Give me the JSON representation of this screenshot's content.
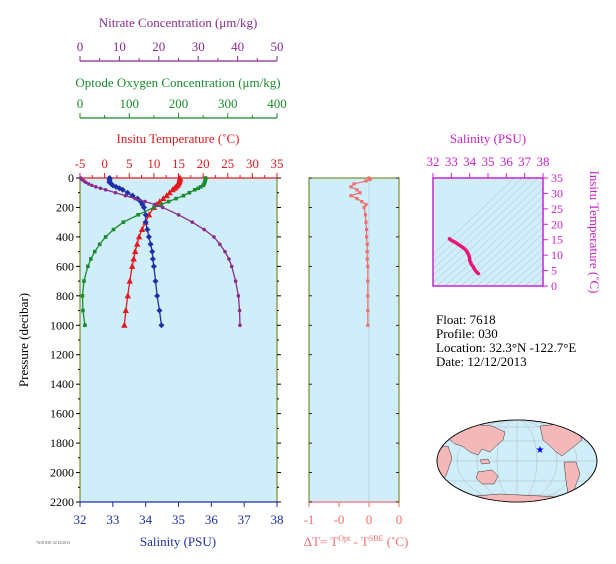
{
  "colors": {
    "nitrate": "#8b2c8b",
    "oxygen": "#1a8c2e",
    "temperature": "#e31a1c",
    "salinity": "#1f2fa8",
    "delta_t": "#f07070",
    "ts_axis": "#cc22cc",
    "ts_line": "#e8157a",
    "panel_bg": "#cfeefa",
    "panel_frame": "#667700"
  },
  "labels": {
    "nitrate_title": "Nitrate Concentration (μm/kg)",
    "oxygen_title": "Optode Oxygen Concentration (μm/kg)",
    "temperature_title": "Insitu Temperature (˚C)",
    "salinity_xlabel": "Salinity (PSU)",
    "pressure_ylabel": "Pressure (decibar)",
    "delta_t_xlabel_prefix": "ΔT= T",
    "delta_t_sup1": "Opt",
    "delta_t_mid": " - T",
    "delta_t_sup2": "SBE",
    "delta_t_suffix": " (˚C)",
    "ts_title": "Salinity (PSU)",
    "ts_ylabel": "Insitu Temperature (˚C)"
  },
  "info": {
    "float_line": "Float:  7618",
    "profile_line": "Profile:  030",
    "location_line": "Location:  32.3°N  -122.7°E",
    "date_line": "Date:  12/12/2013"
  },
  "footnote": "7618 030 12/12/2013",
  "chart_data": [
    {
      "type": "line",
      "name": "main-profile-panel",
      "y_axis": {
        "label": "Pressure (decibar)",
        "range": [
          2200,
          0
        ],
        "ticks": [
          0,
          200,
          400,
          600,
          800,
          1000,
          1200,
          1400,
          1600,
          1800,
          2000,
          2200
        ]
      },
      "x_axes": [
        {
          "label": "Salinity (PSU)",
          "range": [
            32,
            38
          ],
          "ticks": [
            32,
            33,
            34,
            35,
            36,
            37,
            38
          ],
          "position": "bottom"
        },
        {
          "label": "Insitu Temperature (˚C)",
          "range": [
            -5,
            35
          ],
          "ticks": [
            -5,
            0,
            5,
            10,
            15,
            20,
            25,
            30,
            35
          ],
          "position": "top"
        },
        {
          "label": "Optode Oxygen Concentration (μm/kg)",
          "range": [
            0,
            400
          ],
          "ticks": [
            0,
            100,
            200,
            300,
            400
          ],
          "position": "top"
        },
        {
          "label": "Nitrate Concentration (μm/kg)",
          "range": [
            0,
            50
          ],
          "ticks": [
            0,
            10,
            20,
            30,
            40,
            50
          ],
          "position": "top"
        }
      ],
      "series": [
        {
          "key": "temperature",
          "axis": "Insitu Temperature (˚C)",
          "marker": "triangle",
          "pressure": [
            0,
            10,
            20,
            30,
            40,
            50,
            60,
            70,
            80,
            100,
            120,
            140,
            160,
            180,
            200,
            250,
            300,
            350,
            400,
            450,
            500,
            550,
            600,
            700,
            800,
            900,
            1000
          ],
          "values": [
            15.3,
            15.3,
            15.2,
            15.1,
            15.0,
            14.8,
            14.5,
            14.2,
            13.8,
            13.2,
            12.6,
            11.9,
            11.2,
            10.6,
            10.0,
            9.0,
            8.3,
            7.6,
            7.0,
            6.6,
            6.2,
            5.9,
            5.6,
            5.1,
            4.7,
            4.3,
            4.0
          ]
        },
        {
          "key": "salinity",
          "axis": "Salinity (PSU)",
          "marker": "diamond",
          "pressure": [
            0,
            10,
            20,
            30,
            40,
            50,
            60,
            70,
            80,
            100,
            120,
            140,
            160,
            180,
            200,
            250,
            300,
            350,
            400,
            450,
            500,
            550,
            600,
            700,
            800,
            900,
            1000
          ],
          "values": [
            32.9,
            32.9,
            32.9,
            32.9,
            32.95,
            33.0,
            33.1,
            33.2,
            33.3,
            33.45,
            33.6,
            33.75,
            33.85,
            33.9,
            33.95,
            34.0,
            34.0,
            34.05,
            34.1,
            34.15,
            34.2,
            34.22,
            34.25,
            34.3,
            34.35,
            34.42,
            34.48
          ]
        },
        {
          "key": "oxygen",
          "axis": "Optode Oxygen Concentration (μm/kg)",
          "marker": "square",
          "pressure": [
            0,
            10,
            20,
            30,
            40,
            50,
            60,
            70,
            80,
            100,
            120,
            140,
            160,
            180,
            200,
            250,
            300,
            350,
            400,
            450,
            500,
            550,
            600,
            700,
            800,
            900,
            1000
          ],
          "values": [
            255,
            255,
            254,
            253,
            252,
            250,
            245,
            240,
            233,
            222,
            210,
            195,
            180,
            165,
            150,
            118,
            88,
            68,
            52,
            40,
            30,
            22,
            16,
            8,
            5,
            6,
            10
          ]
        },
        {
          "key": "nitrate",
          "axis": "Nitrate Concentration (μm/kg)",
          "marker": "circle",
          "pressure": [
            0,
            10,
            20,
            30,
            40,
            50,
            60,
            70,
            80,
            100,
            120,
            140,
            160,
            180,
            200,
            250,
            300,
            350,
            400,
            450,
            500,
            550,
            600,
            700,
            800,
            900,
            1000
          ],
          "values": [
            0.2,
            0.5,
            1.0,
            1.5,
            2.2,
            3.0,
            4.0,
            5.2,
            6.5,
            9.0,
            11.5,
            14.0,
            16.5,
            19.0,
            21.0,
            25.0,
            28.5,
            31.5,
            34.0,
            35.5,
            36.8,
            37.8,
            38.5,
            39.5,
            40.2,
            40.5,
            40.6
          ]
        }
      ]
    },
    {
      "type": "line",
      "name": "delta-t-panel",
      "xlabel": "ΔT= TOpt - TSBE (˚C)",
      "x_range": [
        -1,
        0.5
      ],
      "x_ticks": [
        -1,
        -0.5,
        0,
        0.5
      ],
      "x_tick_labels": [
        "-1",
        "-0",
        "0",
        "0"
      ],
      "y_range": [
        2200,
        0
      ],
      "series": [
        {
          "key": "delta_t",
          "marker": "square",
          "pressure": [
            0,
            10,
            20,
            40,
            60,
            80,
            100,
            120,
            140,
            160,
            180,
            200,
            250,
            300,
            350,
            400,
            450,
            500,
            550,
            600,
            700,
            800,
            900,
            1000
          ],
          "values": [
            0,
            0.02,
            -0.05,
            -0.25,
            -0.3,
            -0.2,
            -0.15,
            -0.3,
            -0.2,
            -0.12,
            -0.05,
            -0.08,
            -0.06,
            -0.05,
            -0.04,
            -0.04,
            -0.03,
            -0.03,
            -0.03,
            -0.02,
            -0.02,
            -0.02,
            -0.02,
            -0.02
          ]
        }
      ]
    },
    {
      "type": "line",
      "name": "ts-diagram",
      "title": "Salinity (PSU)",
      "x_range": [
        32,
        38
      ],
      "x_ticks": [
        32,
        33,
        34,
        35,
        36,
        37,
        38
      ],
      "y_label": "Insitu Temperature (˚C)",
      "y_range": [
        0,
        35
      ],
      "y_ticks": [
        0,
        5,
        10,
        15,
        20,
        25,
        30,
        35
      ],
      "series": [
        {
          "key": "ts",
          "salinity": [
            32.9,
            32.95,
            33.0,
            33.1,
            33.2,
            33.3,
            33.45,
            33.6,
            33.75,
            33.85,
            33.9,
            33.95,
            34.0,
            34.0,
            34.05,
            34.1,
            34.15,
            34.2,
            34.22,
            34.25,
            34.3,
            34.35,
            34.42,
            34.48
          ],
          "temperature": [
            15.3,
            15.0,
            14.8,
            14.5,
            14.2,
            13.8,
            13.2,
            12.6,
            11.9,
            11.2,
            10.6,
            10.0,
            9.0,
            8.3,
            7.6,
            7.0,
            6.6,
            6.2,
            5.9,
            5.6,
            5.1,
            4.7,
            4.3,
            4.0
          ]
        }
      ]
    }
  ],
  "map": {
    "float_marker_lat": 32.3,
    "float_marker_lon": -122.7
  }
}
